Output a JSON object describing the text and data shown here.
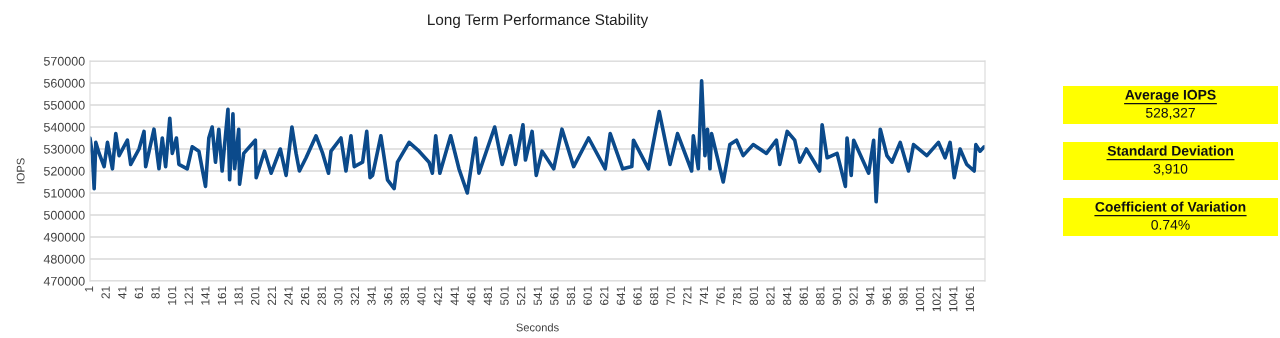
{
  "chart_data": {
    "type": "line",
    "title": "Long Term Performance Stability",
    "xlabel": "Seconds",
    "ylabel": "IOPS",
    "x": [
      1,
      4,
      6,
      8,
      12,
      18,
      22,
      28,
      32,
      36,
      46,
      50,
      60,
      66,
      68,
      78,
      84,
      88,
      92,
      97,
      100,
      105,
      108,
      118,
      124,
      132,
      140,
      144,
      148,
      152,
      156,
      160,
      163,
      167,
      169,
      173,
      175,
      180,
      181,
      186,
      200,
      201,
      211,
      219,
      230,
      237,
      244,
      249,
      253,
      261,
      273,
      281,
      288,
      291,
      303,
      309,
      315,
      319,
      329,
      334,
      338,
      341,
      351,
      359,
      367,
      371,
      385,
      397,
      409,
      413,
      417,
      422,
      435,
      445,
      455,
      465,
      469,
      488,
      497,
      507,
      513,
      522,
      525,
      533,
      538,
      545,
      559,
      569,
      583,
      601,
      621,
      627,
      642,
      653,
      655,
      673,
      682,
      686,
      699,
      708,
      725,
      727,
      733,
      737,
      741,
      744,
      747,
      749,
      763,
      771,
      779,
      787,
      799,
      815,
      827,
      831,
      840,
      849,
      855,
      863,
      879,
      882,
      888,
      900,
      910,
      912,
      917,
      920,
      932,
      938,
      944,
      947,
      952,
      960,
      966,
      976,
      986,
      992,
      1008,
      1022,
      1030,
      1036,
      1041,
      1048,
      1056,
      1065,
      1067,
      1072,
      1077
    ],
    "series": [
      {
        "color": "#0b4a8b",
        "values": [
          535000,
          527000,
          512000,
          533000,
          528000,
          522000,
          533000,
          521000,
          537000,
          527000,
          534000,
          523000,
          530000,
          538000,
          522000,
          539000,
          521000,
          535000,
          522000,
          544000,
          528000,
          535000,
          523000,
          521000,
          531000,
          529000,
          513000,
          535000,
          540000,
          524000,
          539000,
          520000,
          532000,
          548000,
          516000,
          546000,
          521000,
          539000,
          514000,
          528000,
          534000,
          517000,
          529000,
          519000,
          530000,
          518000,
          540000,
          528000,
          520000,
          526000,
          536000,
          528000,
          519000,
          529000,
          535000,
          520000,
          536000,
          522000,
          524000,
          538000,
          517000,
          518000,
          536000,
          516000,
          512000,
          524000,
          533000,
          529000,
          524000,
          519000,
          536000,
          519000,
          536000,
          521000,
          510000,
          535000,
          519000,
          540000,
          523000,
          536000,
          523000,
          541000,
          525000,
          538000,
          518000,
          529000,
          521000,
          539000,
          522000,
          535000,
          521000,
          537000,
          521000,
          522000,
          534000,
          521000,
          539000,
          547000,
          523000,
          537000,
          520000,
          536000,
          521000,
          561000,
          527000,
          539000,
          521000,
          537000,
          515000,
          532000,
          534000,
          527000,
          532000,
          528000,
          534000,
          523000,
          538000,
          534000,
          524000,
          530000,
          520000,
          541000,
          526000,
          528000,
          513000,
          535000,
          518000,
          534000,
          524000,
          519000,
          534000,
          506000,
          539000,
          527000,
          524000,
          533000,
          520000,
          532000,
          527000,
          533000,
          526000,
          533000,
          517000,
          530000,
          523000,
          520000,
          532000,
          529000,
          531000
        ]
      }
    ],
    "xlim": [
      1,
      1078
    ],
    "xticks": [
      1,
      21,
      41,
      61,
      81,
      101,
      121,
      141,
      161,
      181,
      201,
      221,
      241,
      261,
      281,
      301,
      321,
      341,
      361,
      381,
      401,
      421,
      441,
      461,
      481,
      501,
      521,
      541,
      561,
      581,
      601,
      621,
      641,
      661,
      681,
      701,
      721,
      741,
      761,
      781,
      801,
      821,
      841,
      861,
      881,
      901,
      921,
      941,
      961,
      981,
      1001,
      1021,
      1041,
      1061
    ],
    "ylim": [
      470000,
      570000
    ],
    "yticks": [
      470000,
      480000,
      490000,
      500000,
      510000,
      520000,
      530000,
      540000,
      550000,
      560000,
      570000
    ],
    "grid": "y",
    "annotations": [
      "Average IOPS",
      "528,327",
      "Standard Deviation",
      "3,910",
      "Coefficient of Variation",
      "0.74%"
    ]
  }
}
